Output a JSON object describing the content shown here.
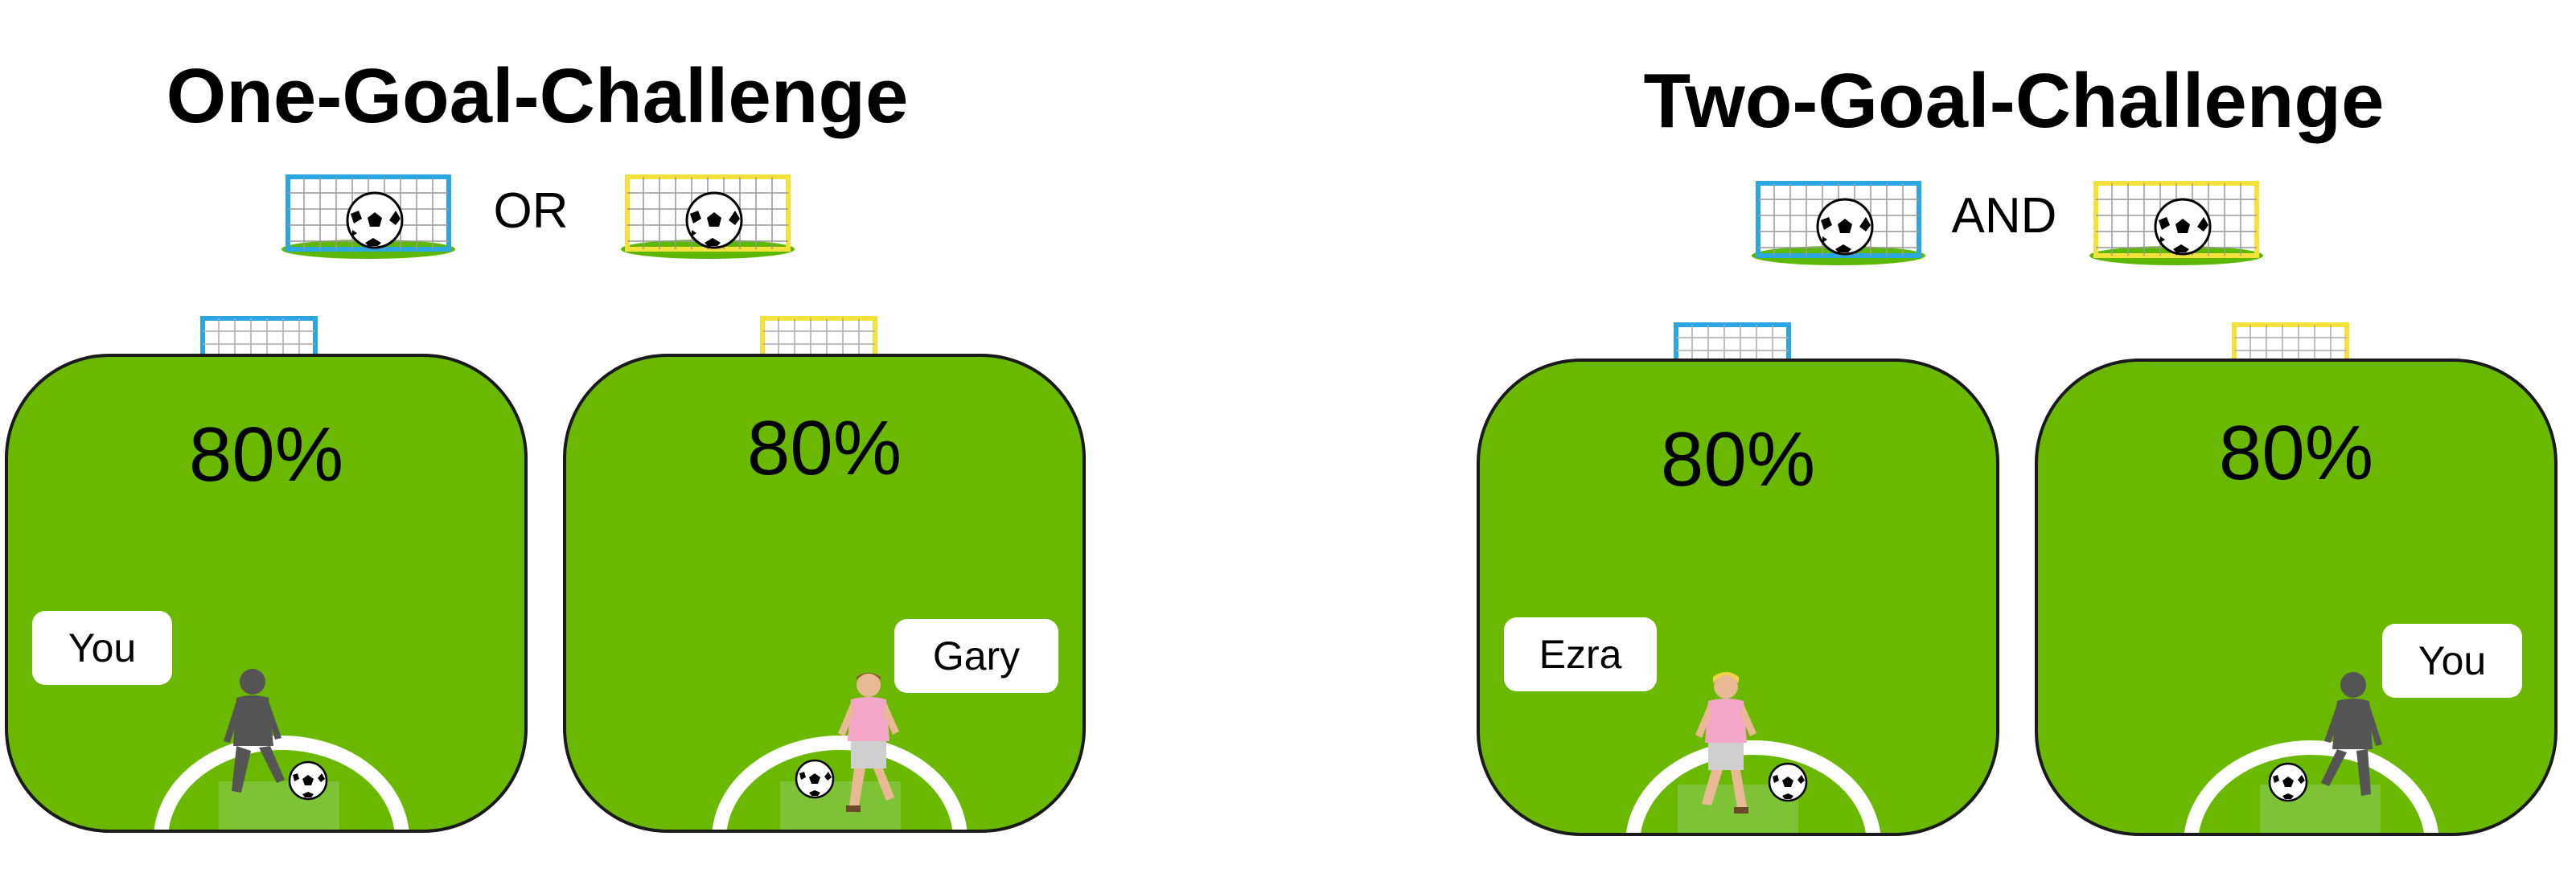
{
  "challenges": [
    {
      "title": "One-Goal-Challenge",
      "conjunction": "OR",
      "fields": [
        {
          "goal_color": "#2aa7e0",
          "percent": "80%",
          "player_label": "You",
          "player": "shadow"
        },
        {
          "goal_color": "#f4e23a",
          "percent": "80%",
          "player_label": "Gary",
          "player": "pink-kid"
        }
      ]
    },
    {
      "title": "Two-Goal-Challenge",
      "conjunction": "AND",
      "fields": [
        {
          "goal_color": "#2aa7e0",
          "percent": "80%",
          "player_label": "Ezra",
          "player": "pink-kid-blonde"
        },
        {
          "goal_color": "#f4e23a",
          "percent": "80%",
          "player_label": "You",
          "player": "shadow"
        }
      ]
    }
  ],
  "colors": {
    "field": "#6ab900",
    "blue_goal": "#2aa7e0",
    "yellow_goal": "#f4e23a"
  }
}
